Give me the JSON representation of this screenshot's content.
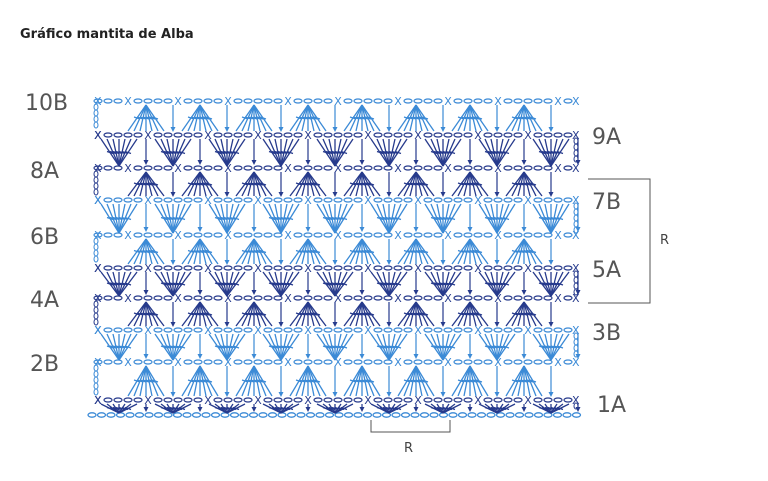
{
  "header": {
    "title": "Gráfico mantita de Alba"
  },
  "rows_left": [
    "10B",
    "8A",
    "6B",
    "4A",
    "2B"
  ],
  "rows_right": [
    "9A",
    "7B",
    "5A",
    "3B",
    "1A"
  ],
  "repeat_right": "R",
  "repeat_bottom": "R"
}
